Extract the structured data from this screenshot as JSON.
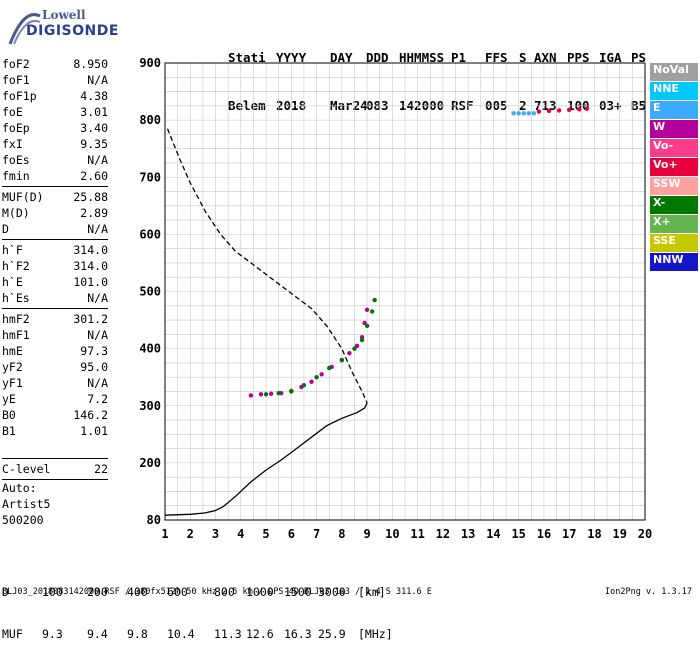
{
  "logo": {
    "line1": "Lowell",
    "line2": "DIGISONDE"
  },
  "header": {
    "row1": [
      "Stati",
      "YYYY",
      "DAY",
      "DDD",
      "HHMMSS",
      "P1",
      "FFS",
      "S",
      "AXN",
      "PPS",
      "IGA",
      "PS"
    ],
    "row2": [
      "Belem",
      "2018",
      "Mar24",
      "083",
      "142000",
      "RSF",
      "005",
      "2",
      "713",
      "100",
      "03+",
      "B5"
    ]
  },
  "params": {
    "group1": [
      {
        "key": "foF2",
        "value": "8.950"
      },
      {
        "key": "foF1",
        "value": "N/A"
      },
      {
        "key": "foF1p",
        "value": "4.38"
      },
      {
        "key": "foE",
        "value": "3.01"
      },
      {
        "key": "foEp",
        "value": "3.40"
      },
      {
        "key": "fxI",
        "value": "9.35"
      },
      {
        "key": "foEs",
        "value": "N/A"
      },
      {
        "key": "fmin",
        "value": "2.60"
      }
    ],
    "group2": [
      {
        "key": "MUF(D)",
        "value": "25.88"
      },
      {
        "key": "M(D)",
        "value": "2.89"
      },
      {
        "key": "D",
        "value": "N/A"
      }
    ],
    "group3": [
      {
        "key": "h`F",
        "value": "314.0"
      },
      {
        "key": "h`F2",
        "value": "314.0"
      },
      {
        "key": "h`E",
        "value": "101.0"
      },
      {
        "key": "h`Es",
        "value": "N/A"
      }
    ],
    "group4": [
      {
        "key": "hmF2",
        "value": "301.2"
      },
      {
        "key": "hmF1",
        "value": "N/A"
      },
      {
        "key": "hmE",
        "value": "97.3"
      },
      {
        "key": "yF2",
        "value": "95.0"
      },
      {
        "key": "yF1",
        "value": "N/A"
      },
      {
        "key": "yE",
        "value": "7.2"
      },
      {
        "key": "B0",
        "value": "146.2"
      },
      {
        "key": "B1",
        "value": "1.01"
      }
    ],
    "clevel": {
      "key": "C-level",
      "value": "22"
    },
    "auto": [
      "Auto:",
      "Artist5",
      "500200"
    ]
  },
  "legend": [
    {
      "label": "NoVal",
      "color": "#a0a0a0"
    },
    {
      "label": "NNE",
      "color": "#00c8ff"
    },
    {
      "label": "E",
      "color": "#3caaff"
    },
    {
      "label": "W",
      "color": "#b4009b"
    },
    {
      "label": "Vo-",
      "color": "#ff3c8c"
    },
    {
      "label": "Vo+",
      "color": "#e6003c"
    },
    {
      "label": "SSW",
      "color": "#ffa0a0"
    },
    {
      "label": "X-",
      "color": "#007800"
    },
    {
      "label": "X+",
      "color": "#64b450"
    },
    {
      "label": "SSE",
      "color": "#c8c800"
    },
    {
      "label": "NNW",
      "color": "#1414c8"
    }
  ],
  "muf_table": {
    "d_label": "D",
    "d_values": [
      "100",
      "200",
      "400",
      "600",
      "800",
      "1000",
      "1500",
      "3000"
    ],
    "d_unit": "[km]",
    "muf_label": "MUF",
    "muf_values": [
      "9.3",
      "9.4",
      "9.8",
      "10.4",
      "11.3",
      "12.6",
      "16.3",
      "25.9"
    ],
    "muf_unit": "[MHz]"
  },
  "footer": {
    "file": "BLJ03_2018083142000.RSF / 380fx512h 50 kHz 2.5 km / DPS-4D BLJ03 103 / 1.4 S 311.6 E",
    "version": "Ion2Png v. 1.3.17"
  },
  "chart_data": {
    "type": "scatter",
    "x_ticks": [
      1,
      2,
      3,
      4,
      5,
      6,
      7,
      8,
      9,
      10,
      11,
      12,
      13,
      14,
      15,
      16,
      17,
      18,
      19,
      20
    ],
    "y_ticks": [
      80,
      200,
      300,
      400,
      500,
      600,
      700,
      800,
      900
    ],
    "xlim": [
      1,
      20
    ],
    "ylim": [
      80,
      900
    ],
    "y_breaks": [
      80,
      200,
      300,
      400,
      500,
      600,
      700,
      800,
      900
    ],
    "grid": true,
    "series": [
      {
        "color": "#000000",
        "style": "solid",
        "points": [
          [
            1.0,
            90
          ],
          [
            2.0,
            92
          ],
          [
            2.6,
            95
          ],
          [
            3.0,
            100
          ],
          [
            3.3,
            108
          ],
          [
            3.8,
            130
          ],
          [
            4.4,
            160
          ],
          [
            5.0,
            185
          ],
          [
            5.6,
            205
          ],
          [
            6.2,
            225
          ],
          [
            6.8,
            245
          ],
          [
            7.4,
            265
          ],
          [
            8.0,
            278
          ],
          [
            8.6,
            288
          ],
          [
            8.9,
            296
          ],
          [
            9.0,
            305
          ]
        ]
      },
      {
        "color": "#000000",
        "style": "dashed",
        "points": [
          [
            1.1,
            785
          ],
          [
            1.6,
            730
          ],
          [
            2.0,
            690
          ],
          [
            2.6,
            640
          ],
          [
            3.2,
            600
          ],
          [
            3.8,
            570
          ],
          [
            4.4,
            550
          ],
          [
            5.0,
            530
          ],
          [
            5.6,
            510
          ],
          [
            6.2,
            490
          ],
          [
            6.8,
            470
          ],
          [
            7.4,
            440
          ],
          [
            8.0,
            400
          ],
          [
            8.4,
            360
          ],
          [
            8.8,
            325
          ],
          [
            9.0,
            305
          ]
        ]
      },
      {
        "color": "#b4009b",
        "style": "dots",
        "points": [
          [
            4.4,
            318
          ],
          [
            4.8,
            320
          ],
          [
            5.2,
            321
          ],
          [
            5.6,
            322
          ],
          [
            6.0,
            325
          ],
          [
            6.4,
            333
          ],
          [
            6.8,
            342
          ],
          [
            7.2,
            355
          ],
          [
            7.6,
            368
          ],
          [
            8.0,
            380
          ],
          [
            8.3,
            392
          ],
          [
            8.6,
            405
          ],
          [
            8.8,
            420
          ],
          [
            8.9,
            445
          ],
          [
            9.0,
            468
          ]
        ]
      },
      {
        "color": "#007800",
        "style": "dots",
        "points": [
          [
            5.0,
            320
          ],
          [
            5.5,
            322
          ],
          [
            6.0,
            326
          ],
          [
            6.5,
            336
          ],
          [
            7.0,
            350
          ],
          [
            7.5,
            366
          ],
          [
            8.0,
            380
          ],
          [
            8.5,
            400
          ],
          [
            8.8,
            415
          ],
          [
            9.0,
            440
          ],
          [
            9.2,
            465
          ],
          [
            9.3,
            485
          ]
        ]
      },
      {
        "color": "#e6003c",
        "style": "dots",
        "points": [
          [
            15.8,
            815
          ],
          [
            16.2,
            816
          ],
          [
            16.6,
            817
          ],
          [
            17.0,
            818
          ],
          [
            17.4,
            819
          ],
          [
            17.7,
            820
          ]
        ]
      },
      {
        "color": "#3caaff",
        "style": "dots",
        "points": [
          [
            14.8,
            812
          ],
          [
            15.0,
            812
          ],
          [
            15.2,
            812
          ],
          [
            15.4,
            812
          ],
          [
            15.6,
            812
          ]
        ]
      }
    ]
  }
}
